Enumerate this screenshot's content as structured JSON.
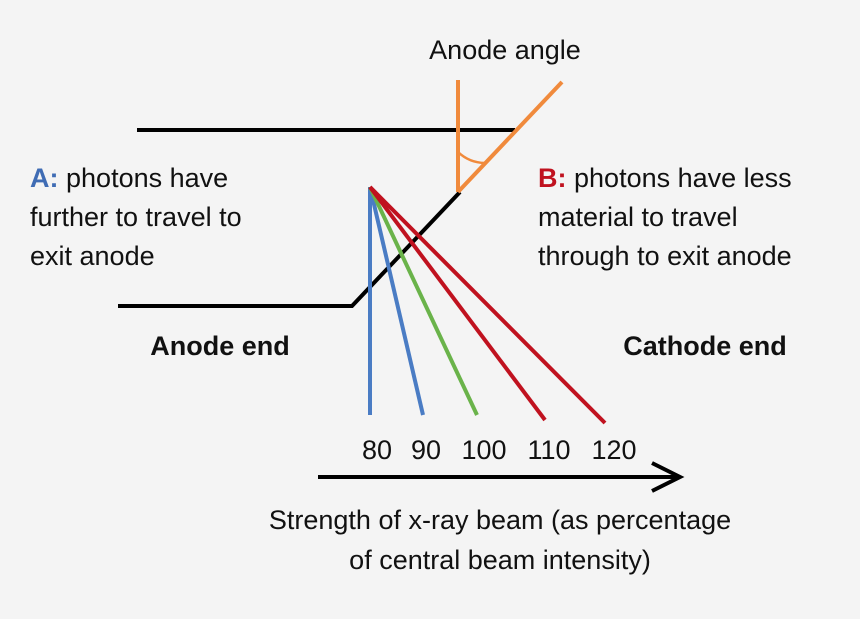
{
  "title": "Anode angle",
  "note_a": {
    "prefix": "A:",
    "lines": [
      "photons have",
      "further to travel to",
      "exit anode"
    ]
  },
  "note_b": {
    "prefix": "B:",
    "lines": [
      "photons have less",
      "material to travel",
      "through to exit anode"
    ]
  },
  "anode_end": "Anode end",
  "cathode_end": "Cathode end",
  "beams": [
    80,
    90,
    100,
    110,
    120
  ],
  "caption": [
    "Strength of x-ray beam (as percentage",
    "of central beam intensity)"
  ]
}
